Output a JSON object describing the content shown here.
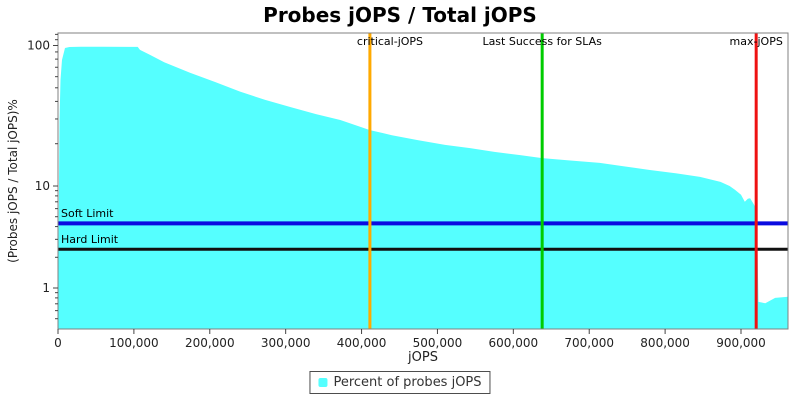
{
  "title": "Probes jOPS / Total jOPS",
  "x_axis": {
    "label": "jOPS",
    "ticks": [
      {
        "label": "0",
        "value": 0
      },
      {
        "label": "100,000",
        "value": 100000
      },
      {
        "label": "200,000",
        "value": 200000
      },
      {
        "label": "300,000",
        "value": 300000
      },
      {
        "label": "400,000",
        "value": 400000
      },
      {
        "label": "500,000",
        "value": 500000
      },
      {
        "label": "600,000",
        "value": 600000
      },
      {
        "label": "700,000",
        "value": 700000
      },
      {
        "label": "800,000",
        "value": 800000
      },
      {
        "label": "900,000",
        "value": 900000
      }
    ]
  },
  "y_axis": {
    "label": "(Probes jOPS / Total jOPS)%",
    "ticks": [
      {
        "label": "100",
        "value": 100
      },
      {
        "label": "10",
        "value": 10
      },
      {
        "label": "1",
        "value": 1
      }
    ]
  },
  "legend": {
    "label": "Percent of probes jOPS"
  },
  "chart_data": {
    "type": "area",
    "x_scale": "linear",
    "y_scale": "log",
    "xlim": [
      0,
      962000
    ],
    "ylim": [
      0.4,
      120
    ],
    "grid": false,
    "markers": [
      {
        "label": "critical-jOPS",
        "value": 411000,
        "color": "#FFAA00"
      },
      {
        "label": "Last Success for SLAs",
        "value": 638000,
        "color": "#00CC00"
      },
      {
        "label": "max-jOPS",
        "value": 920000,
        "color": "#EE1111"
      }
    ],
    "limits": [
      {
        "label": "Soft Limit",
        "value": 4.3,
        "color": "#0A0AE0"
      },
      {
        "label": "Hard Limit",
        "value": 2.4,
        "color": "#111111"
      }
    ],
    "series": [
      {
        "name": "Percent of probes jOPS",
        "color": "#55FFFF",
        "points": [
          [
            0,
            0.4
          ],
          [
            700,
            2.4
          ],
          [
            2000,
            29
          ],
          [
            3300,
            57
          ],
          [
            5300,
            79
          ],
          [
            9200,
            96
          ],
          [
            15000,
            97.5
          ],
          [
            30000,
            98
          ],
          [
            60000,
            98
          ],
          [
            105000,
            97.7
          ],
          [
            108000,
            93
          ],
          [
            121000,
            86
          ],
          [
            140000,
            76
          ],
          [
            174000,
            64
          ],
          [
            207000,
            55
          ],
          [
            240000,
            47
          ],
          [
            273000,
            41
          ],
          [
            306000,
            36.5
          ],
          [
            340000,
            32.5
          ],
          [
            372000,
            29.5
          ],
          [
            411000,
            25
          ],
          [
            440000,
            23
          ],
          [
            474000,
            21.2
          ],
          [
            510000,
            19.6
          ],
          [
            543000,
            18.6
          ],
          [
            575000,
            17.5
          ],
          [
            609000,
            16.6
          ],
          [
            638000,
            15.8
          ],
          [
            675000,
            15.2
          ],
          [
            714000,
            14.6
          ],
          [
            745000,
            13.8
          ],
          [
            780000,
            13
          ],
          [
            815000,
            12.3
          ],
          [
            846000,
            11.6
          ],
          [
            873000,
            10.7
          ],
          [
            885000,
            10
          ],
          [
            892000,
            9.2
          ],
          [
            900000,
            8.2
          ],
          [
            905000,
            7.0
          ],
          [
            909000,
            7.5
          ],
          [
            912000,
            7.6
          ],
          [
            916000,
            6.8
          ],
          [
            920000,
            6.0
          ],
          [
            921500,
            2.9
          ],
          [
            923000,
            0.73
          ],
          [
            932000,
            0.71
          ],
          [
            945000,
            0.8
          ],
          [
            962000,
            0.82
          ]
        ]
      }
    ]
  }
}
